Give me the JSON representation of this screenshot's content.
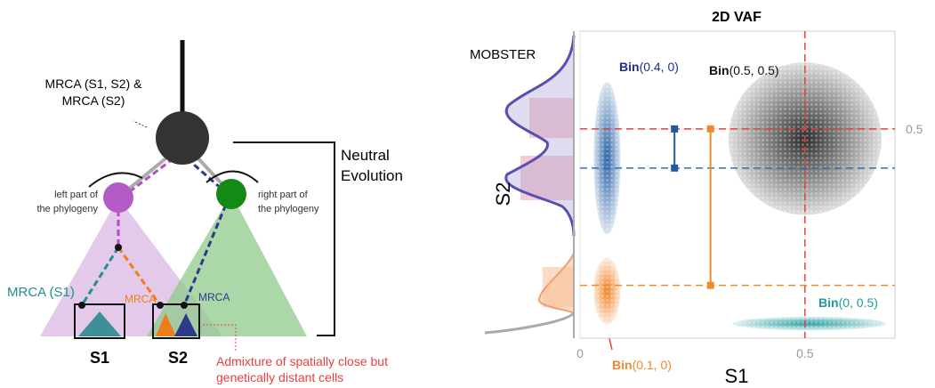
{
  "diagram": {
    "mrca_root": [
      "MRCA (S1, S2) &",
      "MRCA (S2)"
    ],
    "left_part": [
      "left part of",
      "the phylogeny"
    ],
    "right_part": [
      "right part of",
      "the phylogeny"
    ],
    "neutral": [
      "Neutral",
      "Evolution"
    ],
    "mrca_s1": "MRCA (S1)",
    "mrca_orange": "MRCA",
    "mrca_navy": "MRCA",
    "s1": "S1",
    "s2": "S2",
    "admixture": [
      "Admixture of spatially close but",
      "genetically distant cells"
    ]
  },
  "chart_data": {
    "type": "scatter",
    "title": "2D VAF",
    "xlabel": "S1",
    "ylabel": "S2",
    "marginal_label": "MOBSTER",
    "xlim": [
      0,
      0.7
    ],
    "ylim": [
      -0.035,
      0.75
    ],
    "xticks": [
      0,
      0.5
    ],
    "yticks": [
      0.5
    ],
    "grid": true,
    "clusters": [
      {
        "color": "#222222",
        "x_extent": [
          0.33,
          0.67
        ],
        "y_extent": [
          0.28,
          0.67
        ]
      },
      {
        "color": "#1f5aa0",
        "x_extent": [
          0.03,
          0.09
        ],
        "y_extent": [
          0.23,
          0.62
        ]
      },
      {
        "color": "#ef7d1a",
        "x_extent": [
          0.03,
          0.09
        ],
        "y_extent": [
          0.0,
          0.17
        ]
      },
      {
        "color": "#1f9a9a",
        "x_extent": [
          0.34,
          0.68
        ],
        "y_extent": [
          -0.015,
          0.02
        ]
      }
    ],
    "hlines": [
      {
        "value": 0.5,
        "color": "#e8413c"
      },
      {
        "value": 0.4,
        "color": "#2f6db5"
      },
      {
        "value": 0.1,
        "color": "#ef8a2a"
      }
    ],
    "vlines": [
      {
        "value": 0.5,
        "color": "#e8413c"
      }
    ],
    "segments": [
      {
        "x": 0.21,
        "y": [
          0.4,
          0.5
        ],
        "color": "#1f5aa0"
      },
      {
        "x": 0.29,
        "y": [
          0.1,
          0.5
        ],
        "color": "#ef8a2a"
      }
    ],
    "annotations": [
      {
        "bold": "Bin",
        "text": "(0.4, 0)",
        "color": "#1f2f8c"
      },
      {
        "bold": "Bin",
        "text": "(0.5, 0.5)",
        "color": "#111111"
      },
      {
        "bold": "Bin",
        "text": "(0.1, 0)",
        "color": "#ef8a2a"
      },
      {
        "bold": "Bin",
        "text": "(0, 0.5)",
        "color": "#1f9a9a"
      }
    ]
  }
}
